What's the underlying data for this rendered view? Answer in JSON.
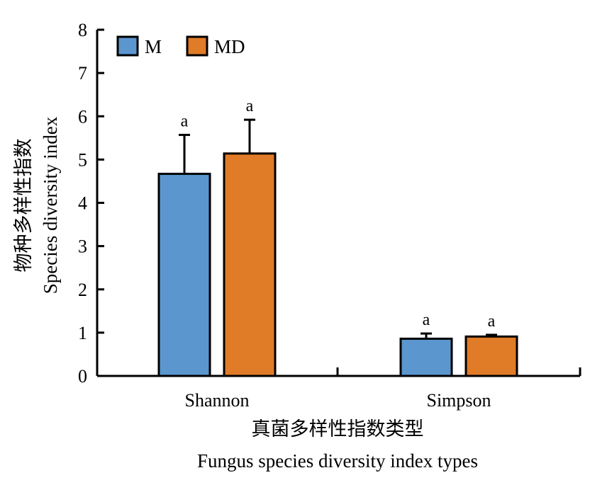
{
  "chart_data": {
    "type": "bar",
    "categories": [
      "Shannon",
      "Simpson"
    ],
    "series": [
      {
        "name": "M",
        "color": "#5b96ce",
        "values": [
          4.67,
          0.86
        ],
        "errors": [
          0.9,
          0.12
        ],
        "letters": [
          "a",
          "a"
        ]
      },
      {
        "name": "MD",
        "color": "#e07b27",
        "values": [
          5.14,
          0.91
        ],
        "errors": [
          0.78,
          0.04
        ],
        "letters": [
          "a",
          "a"
        ]
      }
    ],
    "xlabel_cn": "真菌多样性指数类型",
    "xlabel_en": "Fungus species diversity index types",
    "ylabel_cn": "物种多样性指数",
    "ylabel_en": "Species diversity index",
    "ylim": [
      0,
      8
    ],
    "yticks": [
      0,
      1,
      2,
      3,
      4,
      5,
      6,
      7,
      8
    ],
    "grid": false,
    "legend_position": "top-left"
  }
}
